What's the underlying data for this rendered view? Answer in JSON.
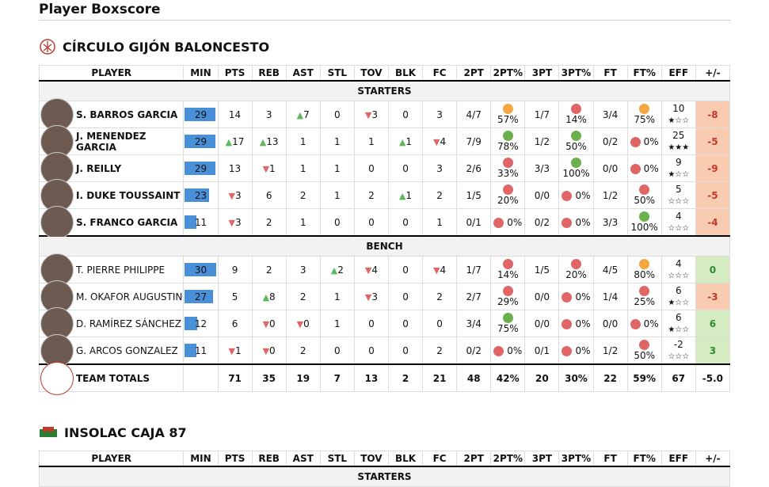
{
  "title": "Player Boxscore",
  "teams": [
    {
      "name": "CÍRCULO GIJÓN BALONCESTO",
      "columns": [
        "PLAYER",
        "MIN",
        "PTS",
        "REB",
        "AST",
        "STL",
        "TOV",
        "BLK",
        "FC",
        "2PT",
        "2PT%",
        "3PT",
        "3PT%",
        "FT",
        "FT%",
        "EFF",
        "+/-"
      ],
      "sections": [
        {
          "label": "STARTERS",
          "bold_names": true,
          "rows": [
            {
              "player": "S. BARROS GARCIA",
              "min": 29,
              "stats": [
                "14",
                "3",
                {
                  "text": "7",
                  "arrow": "up"
                },
                "0",
                {
                  "text": "3",
                  "arrow": "down"
                },
                "0",
                "3",
                "4/7",
                {
                  "text": "57%",
                  "dot": "#f5a742"
                },
                "1/7",
                {
                  "text": "14%",
                  "dot": "#e06666"
                },
                "3/4",
                {
                  "text": "75%",
                  "dot": "#f5a742"
                }
              ],
              "eff": "10",
              "stars": "★☆☆",
              "plus_minus": -8
            },
            {
              "player": "J. MENENDEZ GARCIA",
              "min": 29,
              "stats": [
                {
                  "text": "17",
                  "arrow": "up"
                },
                {
                  "text": "13",
                  "arrow": "up"
                },
                "1",
                "1",
                "1",
                {
                  "text": "1",
                  "arrow": "up"
                },
                {
                  "text": "4",
                  "arrow": "down"
                },
                "7/9",
                {
                  "text": "78%",
                  "dot": "#6ab04c"
                },
                "1/2",
                {
                  "text": "50%",
                  "dot": "#6ab04c"
                },
                "0/2",
                {
                  "text": "0%",
                  "dot": "#e06666"
                }
              ],
              "eff": "25",
              "stars": "★★★",
              "plus_minus": -5
            },
            {
              "player": "J. REILLY",
              "min": 29,
              "stats": [
                "13",
                {
                  "text": "1",
                  "arrow": "down"
                },
                "1",
                "1",
                "0",
                "0",
                "3",
                "2/6",
                {
                  "text": "33%",
                  "dot": "#e06666"
                },
                "3/3",
                {
                  "text": "100%",
                  "dot": "#6ab04c"
                },
                "0/0",
                {
                  "text": "0%",
                  "dot": "#e06666"
                }
              ],
              "eff": "9",
              "stars": "★☆☆",
              "plus_minus": -9
            },
            {
              "player": "I. DUKE TOUSSAINT",
              "min": 23,
              "stats": [
                {
                  "text": "3",
                  "arrow": "down"
                },
                "6",
                "2",
                "1",
                "2",
                {
                  "text": "1",
                  "arrow": "up"
                },
                "2",
                "1/5",
                {
                  "text": "20%",
                  "dot": "#e06666"
                },
                "0/0",
                {
                  "text": "0%",
                  "dot": "#e06666"
                },
                "1/2",
                {
                  "text": "50%",
                  "dot": "#e06666"
                }
              ],
              "eff": "5",
              "stars": "☆☆☆",
              "plus_minus": -5
            },
            {
              "player": "S. FRANCO GARCIA",
              "min": 11,
              "stats": [
                {
                  "text": "3",
                  "arrow": "down"
                },
                "2",
                "1",
                "0",
                "0",
                "0",
                "1",
                "0/1",
                {
                  "text": "0%",
                  "dot": "#e06666"
                },
                "0/2",
                {
                  "text": "0%",
                  "dot": "#e06666"
                },
                "3/3",
                {
                  "text": "100%",
                  "dot": "#6ab04c"
                }
              ],
              "eff": "4",
              "stars": "☆☆☆",
              "plus_minus": -4
            }
          ]
        },
        {
          "label": "BENCH",
          "bold_names": false,
          "rows": [
            {
              "player": "T. PIERRE PHILIPPE",
              "min": 30,
              "stats": [
                "9",
                "2",
                "3",
                {
                  "text": "2",
                  "arrow": "up"
                },
                {
                  "text": "4",
                  "arrow": "down"
                },
                "0",
                {
                  "text": "4",
                  "arrow": "down"
                },
                "1/7",
                {
                  "text": "14%",
                  "dot": "#e06666"
                },
                "1/5",
                {
                  "text": "20%",
                  "dot": "#e06666"
                },
                "4/5",
                {
                  "text": "80%",
                  "dot": "#f5a742"
                }
              ],
              "eff": "4",
              "stars": "☆☆☆",
              "plus_minus": 0
            },
            {
              "player": "M. OKAFOR AUGUSTIN",
              "min": 27,
              "stats": [
                "5",
                {
                  "text": "8",
                  "arrow": "up"
                },
                "2",
                "1",
                {
                  "text": "3",
                  "arrow": "down"
                },
                "0",
                "2",
                "2/7",
                {
                  "text": "29%",
                  "dot": "#e06666"
                },
                "0/0",
                {
                  "text": "0%",
                  "dot": "#e06666"
                },
                "1/4",
                {
                  "text": "25%",
                  "dot": "#e06666"
                }
              ],
              "eff": "6",
              "stars": "★☆☆",
              "plus_minus": -3
            },
            {
              "player": "D. RAMÍREZ SÁNCHEZ",
              "min": 12,
              "stats": [
                "6",
                {
                  "text": "0",
                  "arrow": "down"
                },
                {
                  "text": "0",
                  "arrow": "down"
                },
                "1",
                "0",
                "0",
                "0",
                "3/4",
                {
                  "text": "75%",
                  "dot": "#6ab04c"
                },
                "0/0",
                {
                  "text": "0%",
                  "dot": "#e06666"
                },
                "0/0",
                {
                  "text": "0%",
                  "dot": "#e06666"
                }
              ],
              "eff": "6",
              "stars": "★☆☆",
              "plus_minus": 6
            },
            {
              "player": "G. ARCOS GONZALEZ",
              "min": 11,
              "stats": [
                {
                  "text": "1",
                  "arrow": "down"
                },
                {
                  "text": "0",
                  "arrow": "down"
                },
                "2",
                "0",
                "0",
                "0",
                "2",
                "0/2",
                {
                  "text": "0%",
                  "dot": "#e06666"
                },
                "0/1",
                {
                  "text": "0%",
                  "dot": "#e06666"
                },
                "1/2",
                {
                  "text": "50%",
                  "dot": "#e06666"
                }
              ],
              "eff": "-2",
              "stars": "☆☆☆",
              "plus_minus": 3
            }
          ]
        }
      ],
      "totals": {
        "label": "TEAM TOTALS",
        "stats": [
          "71",
          "35",
          "19",
          "7",
          "13",
          "2",
          "21",
          "48",
          "42%",
          "20",
          "30%",
          "22",
          "59%",
          "67",
          "-5.0"
        ]
      }
    },
    {
      "name": "INSOLAC CAJA 87",
      "columns": [
        "PLAYER",
        "MIN",
        "PTS",
        "REB",
        "AST",
        "STL",
        "TOV",
        "BLK",
        "FC",
        "2PT",
        "2PT%",
        "3PT",
        "3PT%",
        "FT",
        "FT%",
        "EFF",
        "+/-"
      ],
      "sections": [
        {
          "label": "STARTERS",
          "bold_names": true,
          "rows": []
        }
      ]
    }
  ]
}
